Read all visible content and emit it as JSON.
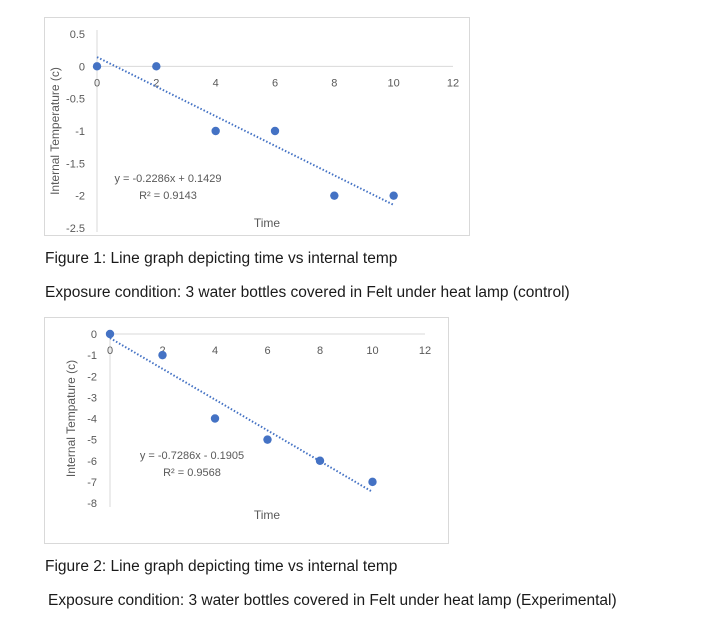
{
  "chart_data": [
    {
      "type": "scatter",
      "title": "",
      "xlabel": "Time",
      "ylabel": "Internal Temperature (c)",
      "xlim": [
        0,
        12
      ],
      "ylim": [
        -2.5,
        0.5
      ],
      "xticks": [
        "0",
        "2",
        "4",
        "6",
        "8",
        "10",
        "12"
      ],
      "yticks": [
        "0.5",
        "0",
        "-0.5",
        "-1",
        "-1.5",
        "-2",
        "-2.5"
      ],
      "points": [
        {
          "x": 0,
          "y": 0
        },
        {
          "x": 2,
          "y": 0
        },
        {
          "x": 4,
          "y": -1
        },
        {
          "x": 6,
          "y": -1
        },
        {
          "x": 8,
          "y": -2
        },
        {
          "x": 10,
          "y": -2
        }
      ],
      "trendline": {
        "slope": -0.2286,
        "intercept": 0.1429,
        "x_range": [
          0,
          10
        ]
      },
      "equation": "y = -0.2286x + 0.1429",
      "r_squared": "R² = 0.9143",
      "color": "#4472c4"
    },
    {
      "type": "scatter",
      "title": "",
      "xlabel": "Time",
      "ylabel": "Internal Tempature (c)",
      "xlim": [
        0,
        12
      ],
      "ylim": [
        -8,
        0
      ],
      "xticks": [
        "0",
        "2",
        "4",
        "6",
        "8",
        "10",
        "12"
      ],
      "yticks": [
        "0",
        "-1",
        "-2",
        "-3",
        "-4",
        "-5",
        "-6",
        "-7",
        "-8"
      ],
      "points": [
        {
          "x": 0,
          "y": 0
        },
        {
          "x": 2,
          "y": -1
        },
        {
          "x": 4,
          "y": -4
        },
        {
          "x": 6,
          "y": -5
        },
        {
          "x": 8,
          "y": -6
        },
        {
          "x": 10,
          "y": -7
        }
      ],
      "trendline": {
        "slope": -0.7286,
        "intercept": -0.1905,
        "x_range": [
          0,
          10
        ]
      },
      "equation": "y = -0.7286x - 0.1905",
      "r_squared": "R² = 0.9568",
      "color": "#4472c4"
    }
  ],
  "captions": {
    "figure1": "Figure 1: Line graph depicting time vs internal temp",
    "exposure1": "Exposure condition: 3 water bottles covered in Felt under heat lamp (control)",
    "figure2": "Figure 2: Line graph depicting time vs internal temp",
    "exposure2": "Exposure condition: 3 water bottles covered in Felt under heat lamp (Experimental)"
  }
}
